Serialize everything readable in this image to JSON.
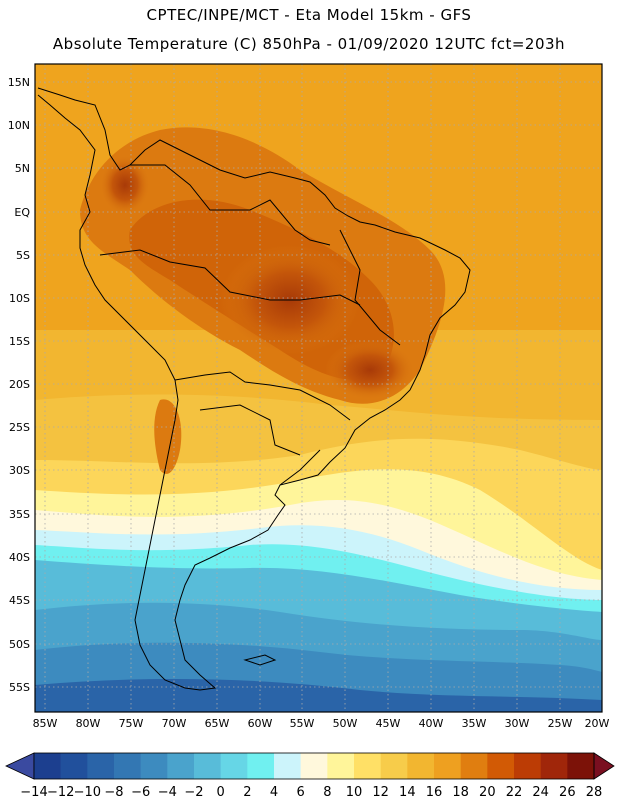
{
  "header": {
    "line1": "CPTEC/INPE/MCT -  Eta Model 15km - GFS",
    "line2": "Absolute Temperature (C) 850hPa - 01/09/2020 12UTC fct=203h"
  },
  "map": {
    "lat_labels": [
      "15N",
      "10N",
      "5N",
      "EQ",
      "5S",
      "10S",
      "15S",
      "20S",
      "25S",
      "30S",
      "35S",
      "40S",
      "45S",
      "50S",
      "55S"
    ],
    "lon_labels": [
      "85W",
      "80W",
      "75W",
      "70W",
      "65W",
      "60W",
      "55W",
      "50W",
      "45W",
      "40W",
      "35W",
      "30W",
      "25W",
      "20W"
    ]
  },
  "colorbar": {
    "labels": [
      "-14",
      "-12",
      "-10",
      "-8",
      "-6",
      "-4",
      "-2",
      "0",
      "2",
      "4",
      "6",
      "8",
      "10",
      "12",
      "14",
      "16",
      "18",
      "20",
      "22",
      "24",
      "26",
      "28"
    ],
    "colors": [
      "#1c3f8f",
      "#21509c",
      "#2a64a8",
      "#3377b3",
      "#3d8bbf",
      "#4aa3cc",
      "#58bcd9",
      "#66d6e6",
      "#70f0f0",
      "#ccf4fb",
      "#fff8dc",
      "#fff59a",
      "#ffe066",
      "#f7cc4a",
      "#f2b630",
      "#eea020",
      "#e07e10",
      "#d25a05",
      "#bc3c05",
      "#a0260a",
      "#7c1208"
    ],
    "min_color": "#3a4aa0",
    "max_color": "#7a0f20"
  }
}
